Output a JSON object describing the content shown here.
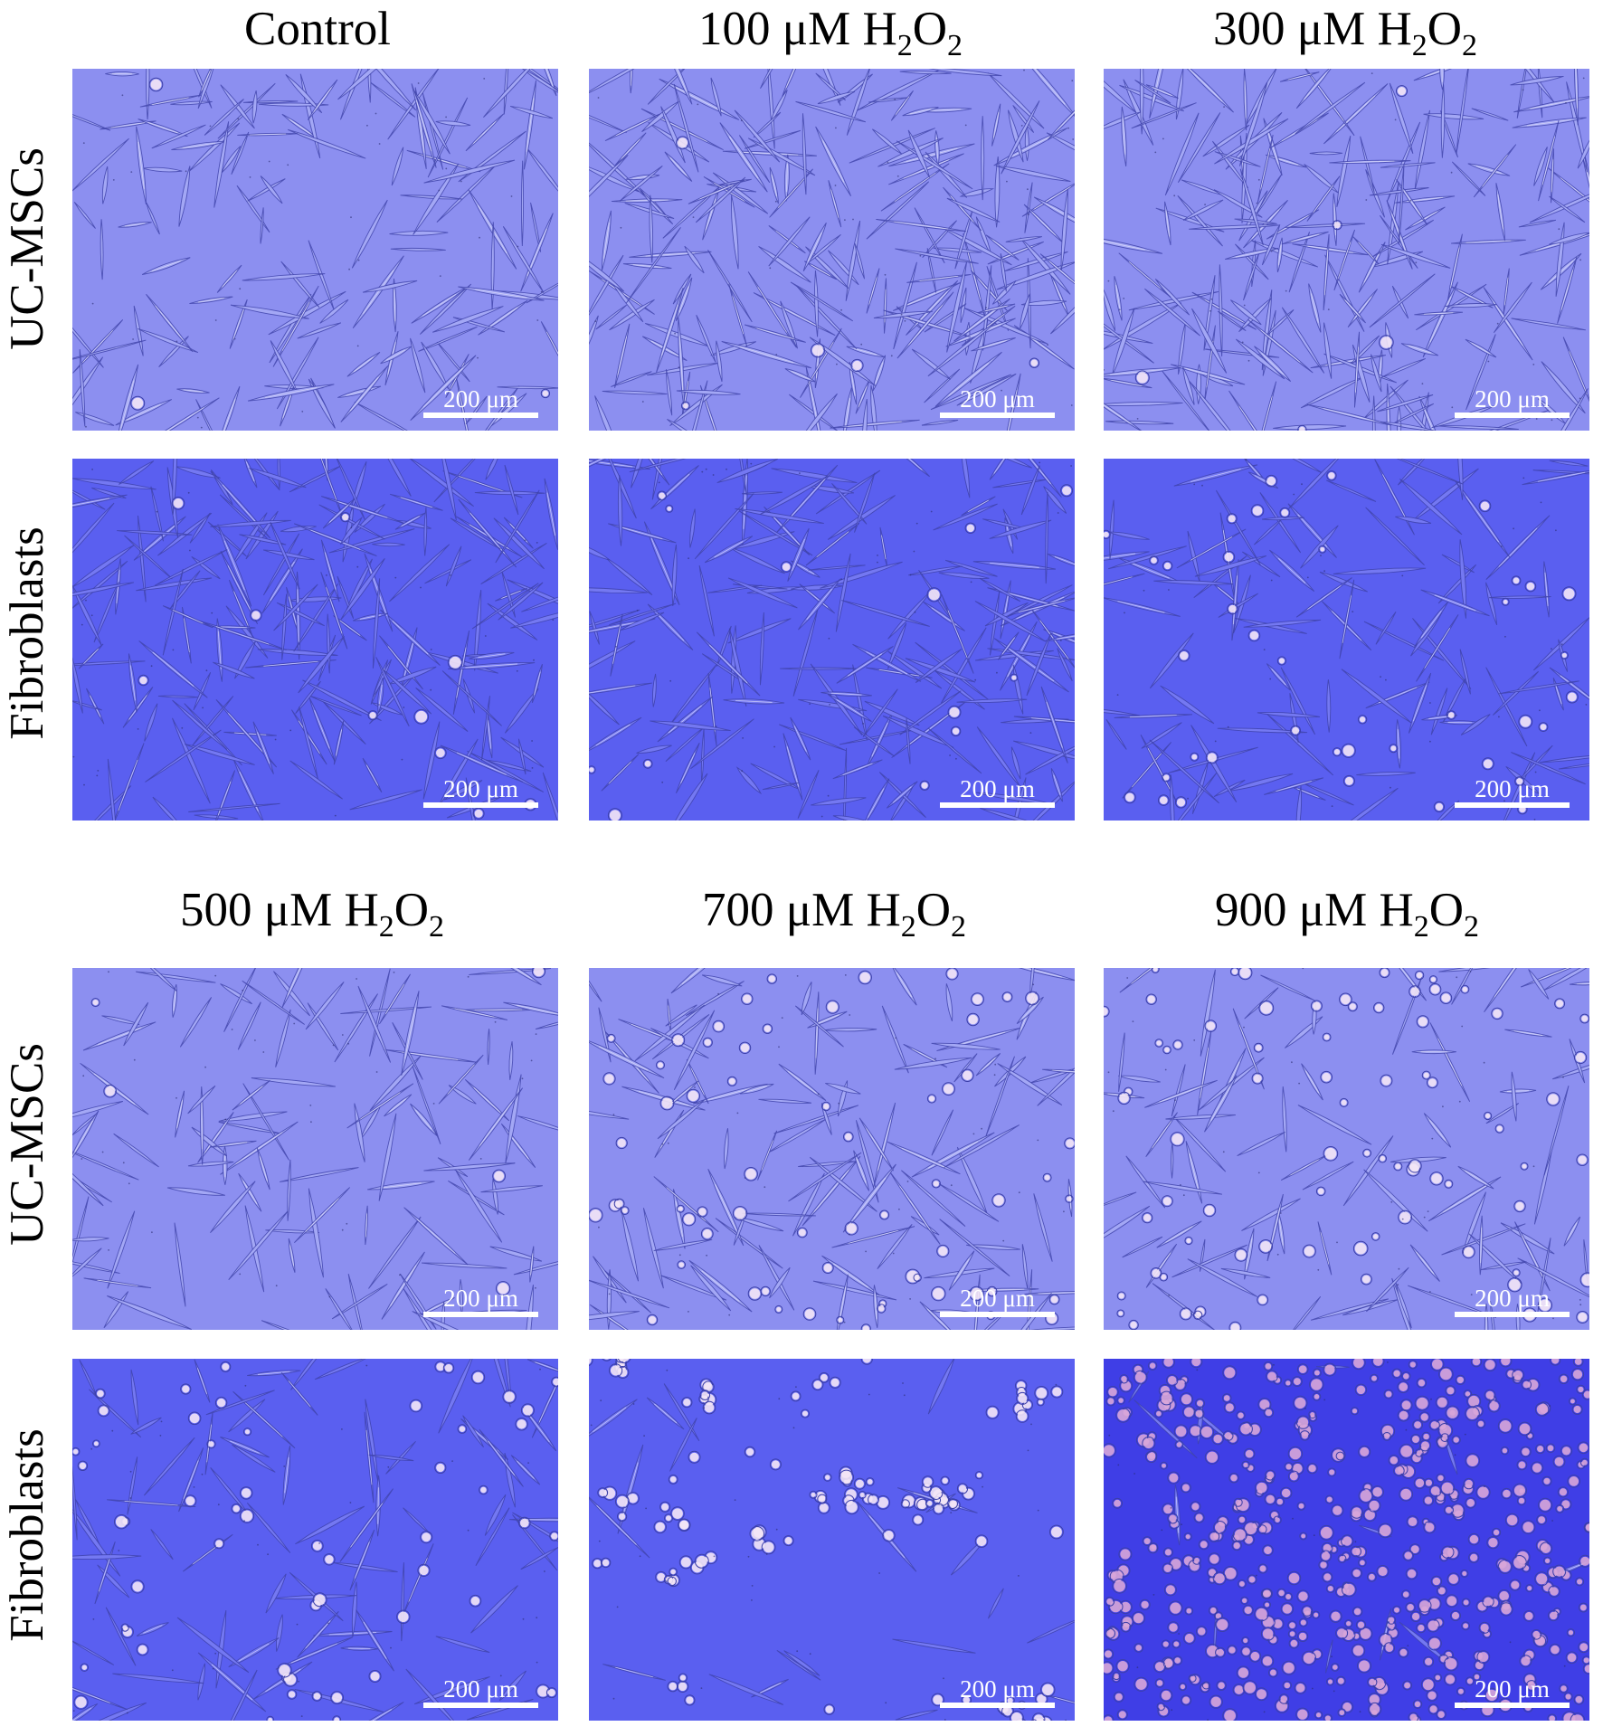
{
  "figure": {
    "groups": [
      {
        "columns": [
          {
            "main": "Control",
            "sub1": "",
            "rest": "",
            "sub2": ""
          },
          {
            "main": "100 μM H",
            "sub1": "2",
            "rest": "O",
            "sub2": "2"
          },
          {
            "main": "300 μM H",
            "sub1": "2",
            "rest": "O",
            "sub2": "2"
          }
        ],
        "rows": [
          "UC-MSCs",
          "Fibroblasts"
        ]
      },
      {
        "columns": [
          {
            "main": "500 μM H",
            "sub1": "2",
            "rest": "O",
            "sub2": "2"
          },
          {
            "main": "700 μM H",
            "sub1": "2",
            "rest": "O",
            "sub2": "2"
          },
          {
            "main": "900 μM H",
            "sub1": "2",
            "rest": "O",
            "sub2": "2"
          }
        ],
        "rows": [
          "UC-MSCs",
          "Fibroblasts"
        ]
      }
    ],
    "scale_bar_label": "200 μm",
    "colors": {
      "uc_msc_background": "#8c8ff0",
      "fibroblast_background": "#5a5ff0",
      "fibroblast_dense_background": "#3f3ee6",
      "cell_highlight": "#f3e6f6",
      "cell_outline": "#3b3fa8"
    }
  }
}
